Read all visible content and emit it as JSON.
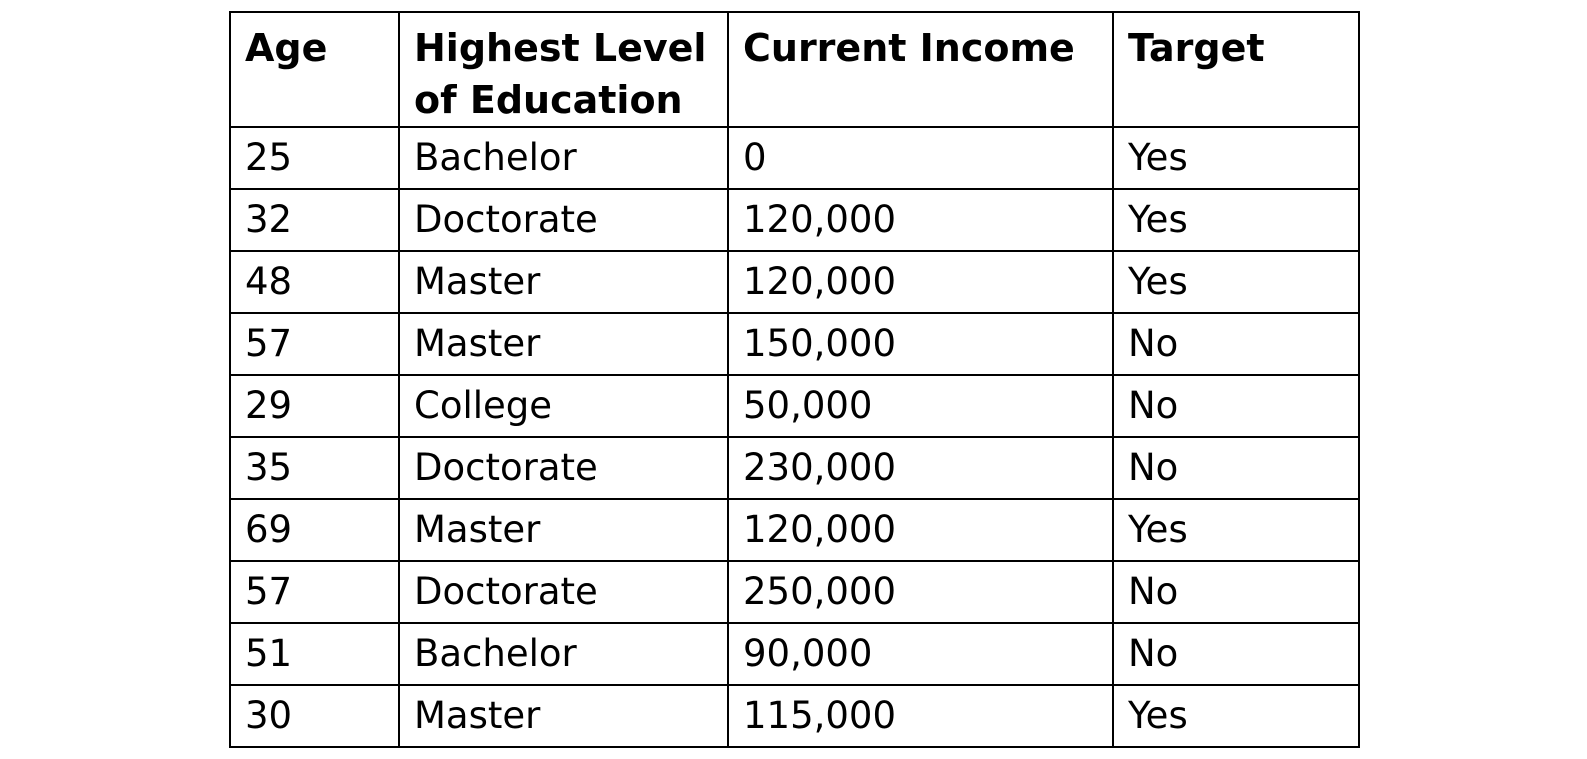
{
  "table": {
    "columns": [
      "Age",
      "Highest Level of Education",
      "Current Income",
      "Target"
    ],
    "rows": [
      [
        "25",
        "Bachelor",
        "0",
        "Yes"
      ],
      [
        "32",
        "Doctorate",
        "120,000",
        "Yes"
      ],
      [
        "48",
        "Master",
        "120,000",
        "Yes"
      ],
      [
        "57",
        "Master",
        "150,000",
        "No"
      ],
      [
        "29",
        "College",
        "50,000",
        "No"
      ],
      [
        "35",
        "Doctorate",
        "230,000",
        "No"
      ],
      [
        "69",
        "Master",
        "120,000",
        "Yes"
      ],
      [
        "57",
        "Doctorate",
        "250,000",
        "No"
      ],
      [
        "51",
        "Bachelor",
        "90,000",
        "No"
      ],
      [
        "30",
        "Master",
        "115,000",
        "Yes"
      ]
    ]
  }
}
